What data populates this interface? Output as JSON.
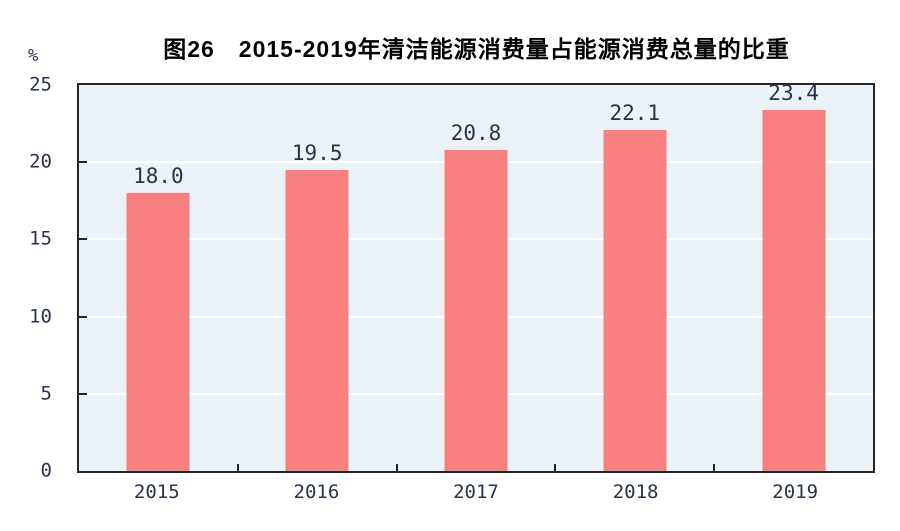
{
  "title": "图26　2015-2019年清洁能源消费量占能源消费总量的比重",
  "chart_data": {
    "type": "bar",
    "title": "图26　2015-2019年清洁能源消费量占能源消费总量的比重",
    "categories": [
      "2015",
      "2016",
      "2017",
      "2018",
      "2019"
    ],
    "values": [
      18.0,
      19.5,
      20.8,
      22.1,
      23.4
    ],
    "value_labels": [
      "18.0",
      "19.5",
      "20.8",
      "22.1",
      "23.4"
    ],
    "xlabel": "",
    "ylabel": "%",
    "ylim": [
      0,
      25
    ],
    "yticks": [
      0,
      5,
      10,
      15,
      20,
      25
    ],
    "grid": true,
    "legend_position": "none",
    "colors": {
      "bar": "#F98080",
      "plot_background": "#ECF3F8",
      "gridline": "#FFFFFF",
      "axis": "#262626",
      "tick_label": "#2B3348",
      "title": "#000000"
    }
  }
}
